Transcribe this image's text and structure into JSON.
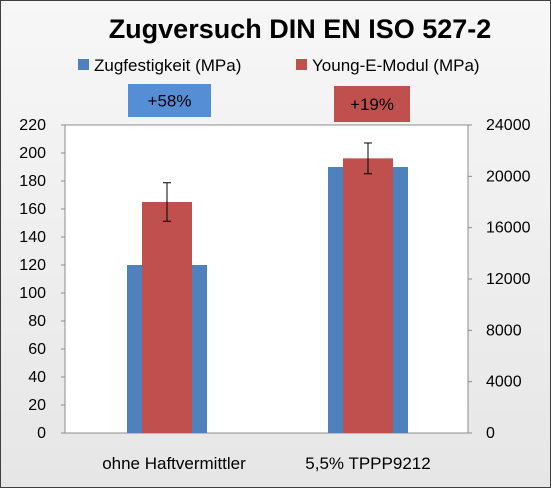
{
  "chart_data": {
    "type": "bar",
    "title": "Zugversuch DIN EN ISO 527-2",
    "categories": [
      "ohne Haftvermittler",
      "5,5% TPPP9212"
    ],
    "series": [
      {
        "name": "Zugfestigkeit (MPa)",
        "axis": "left",
        "color": "#4f81bd",
        "values": [
          120,
          190
        ]
      },
      {
        "name": "Young-E-Modul (MPa)",
        "axis": "right",
        "color": "#c0504d",
        "values": [
          18000,
          21400
        ],
        "error": [
          1500,
          1200
        ]
      }
    ],
    "y_left": {
      "min": 0,
      "max": 220,
      "step": 20,
      "ticks": [
        "0",
        "20",
        "40",
        "60",
        "80",
        "100",
        "120",
        "140",
        "160",
        "180",
        "200",
        "220"
      ]
    },
    "y_right": {
      "min": 0,
      "max": 24000,
      "step": 4000,
      "ticks": [
        "0",
        "4000",
        "8000",
        "12000",
        "16000",
        "20000",
        "24000"
      ]
    },
    "callouts": [
      {
        "text": "+58%",
        "color": "#558ed5",
        "category": 0
      },
      {
        "text": "+19%",
        "color": "#c0504d",
        "category": 1
      }
    ],
    "legend_position": "top",
    "grid": false
  }
}
